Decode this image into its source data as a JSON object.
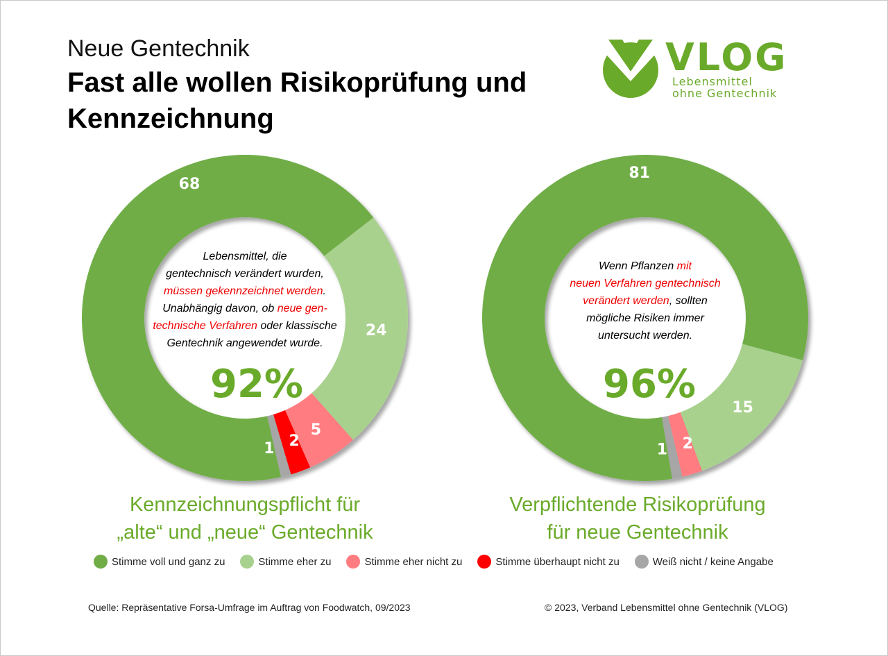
{
  "header": {
    "kicker": "Neue Gentechnik",
    "title": "Fast alle wollen Risikoprüfung und Kennzeichnung"
  },
  "logo": {
    "name": "VLOG",
    "line1": "Lebensmittel",
    "line2": "ohne Gentechnik"
  },
  "colors": {
    "voll": "#70ad47",
    "eher": "#a9d18e",
    "ehernicht": "#ff7c80",
    "ueberhaupt": "#ff0000",
    "weissnicht": "#a6a6a6"
  },
  "chart_data": [
    {
      "type": "pie",
      "subtype": "donut",
      "title": "Kennzeichnungspflicht für „alte“ und „neue“ Gentechnik",
      "total_label": "92%",
      "slices": [
        {
          "name": "Stimme eher zu",
          "value": 24
        },
        {
          "name": "Stimme eher nicht zu",
          "value": 5
        },
        {
          "name": "Stimme überhaupt nicht zu",
          "value": 2
        },
        {
          "name": "Weiß nicht / keine Angabe",
          "value": 1
        },
        {
          "name": "Stimme voll und ganz zu",
          "value": 68
        }
      ],
      "question": [
        "Lebensmittel, die",
        "gentechnisch verändert wurden,",
        "müssen gekennzeichnet werden",
        ".",
        "Unabhängig davon, ob ",
        "neue gen-",
        "technische Verfahren",
        " oder klassische",
        "Gentechnik angewendet wurde."
      ],
      "title_lines": [
        "Kennzeichnungspflicht für",
        "„alte“ und „neue“ Gentechnik"
      ]
    },
    {
      "type": "pie",
      "subtype": "donut",
      "title": "Verpflichtende Risikoprüfung für neue Gentechnik",
      "total_label": "96%",
      "slices": [
        {
          "name": "Stimme eher zu",
          "value": 15
        },
        {
          "name": "Stimme eher nicht zu",
          "value": 2
        },
        {
          "name": "Weiß nicht / keine Angabe",
          "value": 1
        },
        {
          "name": "Stimme voll und ganz zu",
          "value": 81
        }
      ],
      "question": [
        "Wenn Pflanzen ",
        "mit",
        "neuen Verfahren gentechnisch",
        "verändert werden",
        ", sollten",
        "mögliche Risiken immer",
        "untersucht werden."
      ],
      "title_lines": [
        "Verpflichtende Risikoprüfung",
        "für neue Gentechnik"
      ]
    }
  ],
  "legend": [
    "Stimme voll und ganz zu",
    "Stimme eher zu",
    "Stimme eher nicht zu",
    "Stimme überhaupt nicht zu",
    "Weiß nicht / keine Angabe"
  ],
  "footer": {
    "source": "Quelle: Repräsentative  Forsa-Umfrage  im  Auftrag  von Foodwatch,  09/2023",
    "copyright": "© 2023, Verband  Lebensmittel  ohne Gentechnik  (VLOG)"
  }
}
